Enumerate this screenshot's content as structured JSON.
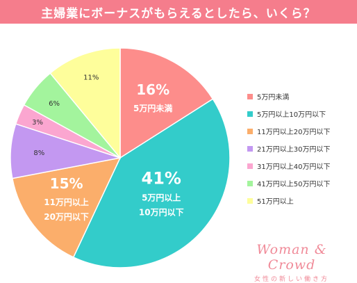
{
  "header": {
    "title": "主婦業にボーナスがもらえるとしたら、いくら？"
  },
  "colors": {
    "title_bar": "#f57d8c",
    "logo": "#f08a98"
  },
  "chart_data": {
    "type": "pie",
    "title": "主婦業にボーナスがもらえるとしたら、いくら？",
    "unit": "%",
    "legend_position": "right",
    "slices": [
      {
        "label": "5万円未満",
        "value": 16,
        "value_label": "16%",
        "inner_label": [
          "5万円未満"
        ],
        "color": "#fd8d8b",
        "label_color": "#ffffff"
      },
      {
        "label": "5万円以上10万円以下",
        "value": 41,
        "value_label": "41%",
        "inner_label": [
          "5万円以上",
          "10万円以下"
        ],
        "color": "#33ccca",
        "label_color": "#ffffff"
      },
      {
        "label": "11万円以上20万円以下",
        "value": 15,
        "value_label": "15%",
        "inner_label": [
          "11万円以上",
          "20万円以下"
        ],
        "color": "#fbae6b",
        "label_color": "#ffffff"
      },
      {
        "label": "21万円以上30万円以下",
        "value": 8,
        "value_label": "8%",
        "inner_label": [],
        "color": "#c398f1",
        "label_color": "#333333"
      },
      {
        "label": "31万円以上40万円以下",
        "value": 3,
        "value_label": "3%",
        "inner_label": [],
        "color": "#fba6d0",
        "label_color": "#333333"
      },
      {
        "label": "41万円以上50万円以下",
        "value": 6,
        "value_label": "6%",
        "inner_label": [],
        "color": "#a3f49d",
        "label_color": "#333333"
      },
      {
        "label": "51万円以上",
        "value": 11,
        "value_label": "11%",
        "inner_label": [],
        "color": "#fefe9b",
        "label_color": "#333333"
      }
    ]
  },
  "logo": {
    "main": "Woman & Crowd",
    "sub": "女性の新しい働き方"
  }
}
